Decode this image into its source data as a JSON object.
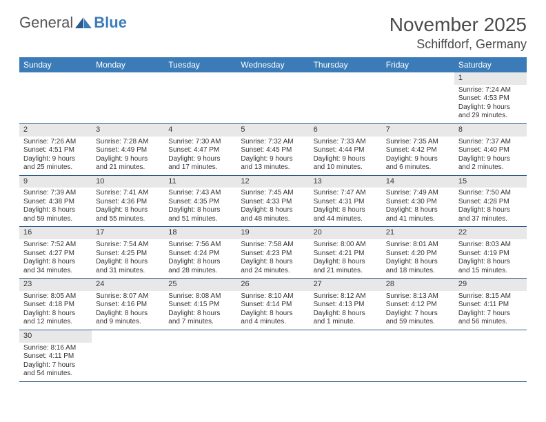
{
  "logo": {
    "text1": "General",
    "text2": "Blue"
  },
  "title": {
    "month": "November 2025",
    "location": "Schiffdorf, Germany"
  },
  "colors": {
    "header_bg": "#3b7cb8",
    "header_text": "#ffffff",
    "daynum_bg": "#e8e8e8",
    "row_border": "#2b5a8c",
    "text": "#333333"
  },
  "day_labels": [
    "Sunday",
    "Monday",
    "Tuesday",
    "Wednesday",
    "Thursday",
    "Friday",
    "Saturday"
  ],
  "weeks": [
    [
      {
        "n": "",
        "sr": "",
        "ss": "",
        "dl": ""
      },
      {
        "n": "",
        "sr": "",
        "ss": "",
        "dl": ""
      },
      {
        "n": "",
        "sr": "",
        "ss": "",
        "dl": ""
      },
      {
        "n": "",
        "sr": "",
        "ss": "",
        "dl": ""
      },
      {
        "n": "",
        "sr": "",
        "ss": "",
        "dl": ""
      },
      {
        "n": "",
        "sr": "",
        "ss": "",
        "dl": ""
      },
      {
        "n": "1",
        "sr": "Sunrise: 7:24 AM",
        "ss": "Sunset: 4:53 PM",
        "dl": "Daylight: 9 hours and 29 minutes."
      }
    ],
    [
      {
        "n": "2",
        "sr": "Sunrise: 7:26 AM",
        "ss": "Sunset: 4:51 PM",
        "dl": "Daylight: 9 hours and 25 minutes."
      },
      {
        "n": "3",
        "sr": "Sunrise: 7:28 AM",
        "ss": "Sunset: 4:49 PM",
        "dl": "Daylight: 9 hours and 21 minutes."
      },
      {
        "n": "4",
        "sr": "Sunrise: 7:30 AM",
        "ss": "Sunset: 4:47 PM",
        "dl": "Daylight: 9 hours and 17 minutes."
      },
      {
        "n": "5",
        "sr": "Sunrise: 7:32 AM",
        "ss": "Sunset: 4:45 PM",
        "dl": "Daylight: 9 hours and 13 minutes."
      },
      {
        "n": "6",
        "sr": "Sunrise: 7:33 AM",
        "ss": "Sunset: 4:44 PM",
        "dl": "Daylight: 9 hours and 10 minutes."
      },
      {
        "n": "7",
        "sr": "Sunrise: 7:35 AM",
        "ss": "Sunset: 4:42 PM",
        "dl": "Daylight: 9 hours and 6 minutes."
      },
      {
        "n": "8",
        "sr": "Sunrise: 7:37 AM",
        "ss": "Sunset: 4:40 PM",
        "dl": "Daylight: 9 hours and 2 minutes."
      }
    ],
    [
      {
        "n": "9",
        "sr": "Sunrise: 7:39 AM",
        "ss": "Sunset: 4:38 PM",
        "dl": "Daylight: 8 hours and 59 minutes."
      },
      {
        "n": "10",
        "sr": "Sunrise: 7:41 AM",
        "ss": "Sunset: 4:36 PM",
        "dl": "Daylight: 8 hours and 55 minutes."
      },
      {
        "n": "11",
        "sr": "Sunrise: 7:43 AM",
        "ss": "Sunset: 4:35 PM",
        "dl": "Daylight: 8 hours and 51 minutes."
      },
      {
        "n": "12",
        "sr": "Sunrise: 7:45 AM",
        "ss": "Sunset: 4:33 PM",
        "dl": "Daylight: 8 hours and 48 minutes."
      },
      {
        "n": "13",
        "sr": "Sunrise: 7:47 AM",
        "ss": "Sunset: 4:31 PM",
        "dl": "Daylight: 8 hours and 44 minutes."
      },
      {
        "n": "14",
        "sr": "Sunrise: 7:49 AM",
        "ss": "Sunset: 4:30 PM",
        "dl": "Daylight: 8 hours and 41 minutes."
      },
      {
        "n": "15",
        "sr": "Sunrise: 7:50 AM",
        "ss": "Sunset: 4:28 PM",
        "dl": "Daylight: 8 hours and 37 minutes."
      }
    ],
    [
      {
        "n": "16",
        "sr": "Sunrise: 7:52 AM",
        "ss": "Sunset: 4:27 PM",
        "dl": "Daylight: 8 hours and 34 minutes."
      },
      {
        "n": "17",
        "sr": "Sunrise: 7:54 AM",
        "ss": "Sunset: 4:25 PM",
        "dl": "Daylight: 8 hours and 31 minutes."
      },
      {
        "n": "18",
        "sr": "Sunrise: 7:56 AM",
        "ss": "Sunset: 4:24 PM",
        "dl": "Daylight: 8 hours and 28 minutes."
      },
      {
        "n": "19",
        "sr": "Sunrise: 7:58 AM",
        "ss": "Sunset: 4:23 PM",
        "dl": "Daylight: 8 hours and 24 minutes."
      },
      {
        "n": "20",
        "sr": "Sunrise: 8:00 AM",
        "ss": "Sunset: 4:21 PM",
        "dl": "Daylight: 8 hours and 21 minutes."
      },
      {
        "n": "21",
        "sr": "Sunrise: 8:01 AM",
        "ss": "Sunset: 4:20 PM",
        "dl": "Daylight: 8 hours and 18 minutes."
      },
      {
        "n": "22",
        "sr": "Sunrise: 8:03 AM",
        "ss": "Sunset: 4:19 PM",
        "dl": "Daylight: 8 hours and 15 minutes."
      }
    ],
    [
      {
        "n": "23",
        "sr": "Sunrise: 8:05 AM",
        "ss": "Sunset: 4:18 PM",
        "dl": "Daylight: 8 hours and 12 minutes."
      },
      {
        "n": "24",
        "sr": "Sunrise: 8:07 AM",
        "ss": "Sunset: 4:16 PM",
        "dl": "Daylight: 8 hours and 9 minutes."
      },
      {
        "n": "25",
        "sr": "Sunrise: 8:08 AM",
        "ss": "Sunset: 4:15 PM",
        "dl": "Daylight: 8 hours and 7 minutes."
      },
      {
        "n": "26",
        "sr": "Sunrise: 8:10 AM",
        "ss": "Sunset: 4:14 PM",
        "dl": "Daylight: 8 hours and 4 minutes."
      },
      {
        "n": "27",
        "sr": "Sunrise: 8:12 AM",
        "ss": "Sunset: 4:13 PM",
        "dl": "Daylight: 8 hours and 1 minute."
      },
      {
        "n": "28",
        "sr": "Sunrise: 8:13 AM",
        "ss": "Sunset: 4:12 PM",
        "dl": "Daylight: 7 hours and 59 minutes."
      },
      {
        "n": "29",
        "sr": "Sunrise: 8:15 AM",
        "ss": "Sunset: 4:11 PM",
        "dl": "Daylight: 7 hours and 56 minutes."
      }
    ],
    [
      {
        "n": "30",
        "sr": "Sunrise: 8:16 AM",
        "ss": "Sunset: 4:11 PM",
        "dl": "Daylight: 7 hours and 54 minutes."
      },
      {
        "n": "",
        "sr": "",
        "ss": "",
        "dl": ""
      },
      {
        "n": "",
        "sr": "",
        "ss": "",
        "dl": ""
      },
      {
        "n": "",
        "sr": "",
        "ss": "",
        "dl": ""
      },
      {
        "n": "",
        "sr": "",
        "ss": "",
        "dl": ""
      },
      {
        "n": "",
        "sr": "",
        "ss": "",
        "dl": ""
      },
      {
        "n": "",
        "sr": "",
        "ss": "",
        "dl": ""
      }
    ]
  ]
}
